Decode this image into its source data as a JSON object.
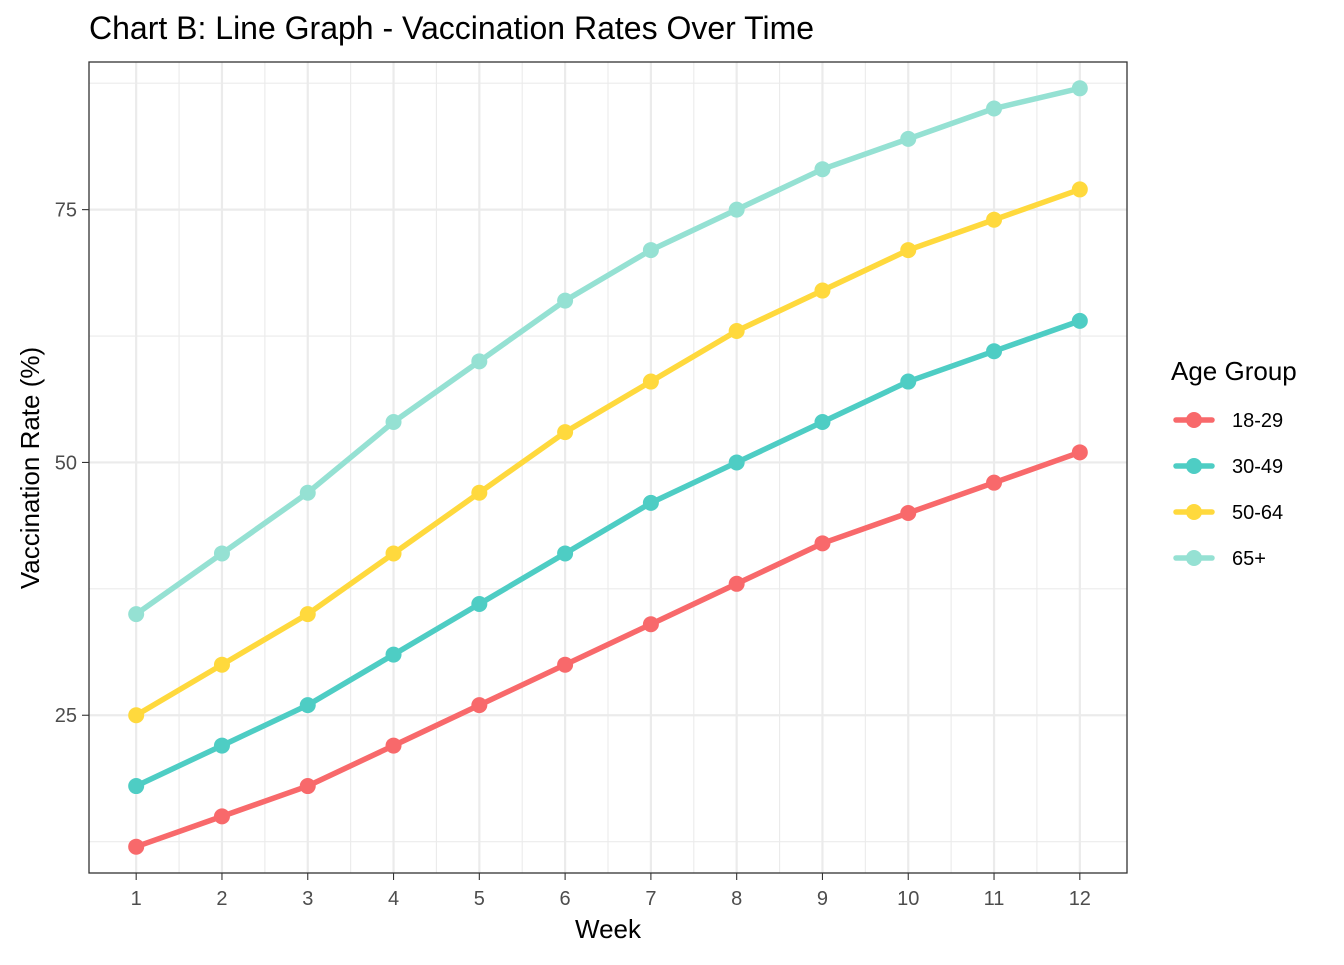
{
  "chart_data": {
    "type": "line",
    "title": "Chart B: Line Graph - Vaccination Rates Over Time",
    "xlabel": "Week",
    "ylabel": "Vaccination Rate (%)",
    "x": [
      1,
      2,
      3,
      4,
      5,
      6,
      7,
      8,
      9,
      10,
      11,
      12
    ],
    "xlim": [
      0.45,
      12.55
    ],
    "ylim": [
      9.4,
      89.6
    ],
    "y_ticks": [
      25,
      50,
      75
    ],
    "y_minor_ticks": [
      12.5,
      37.5,
      62.5,
      87.5
    ],
    "grid": true,
    "legend": {
      "title": "Age Group",
      "position": "right"
    },
    "series": [
      {
        "name": "18-29",
        "color": "#F8696B",
        "values": [
          12,
          15,
          18,
          22,
          26,
          30,
          34,
          38,
          42,
          45,
          48,
          51
        ]
      },
      {
        "name": "30-49",
        "color": "#4ECDC4",
        "values": [
          18,
          22,
          26,
          31,
          36,
          41,
          46,
          50,
          54,
          58,
          61,
          64
        ]
      },
      {
        "name": "50-64",
        "color": "#FFD93D",
        "values": [
          25,
          30,
          35,
          41,
          47,
          53,
          58,
          63,
          67,
          71,
          74,
          77
        ]
      },
      {
        "name": "65+",
        "color": "#95E1D3",
        "values": [
          35,
          41,
          47,
          54,
          60,
          66,
          71,
          75,
          79,
          82,
          85,
          87
        ]
      }
    ]
  }
}
